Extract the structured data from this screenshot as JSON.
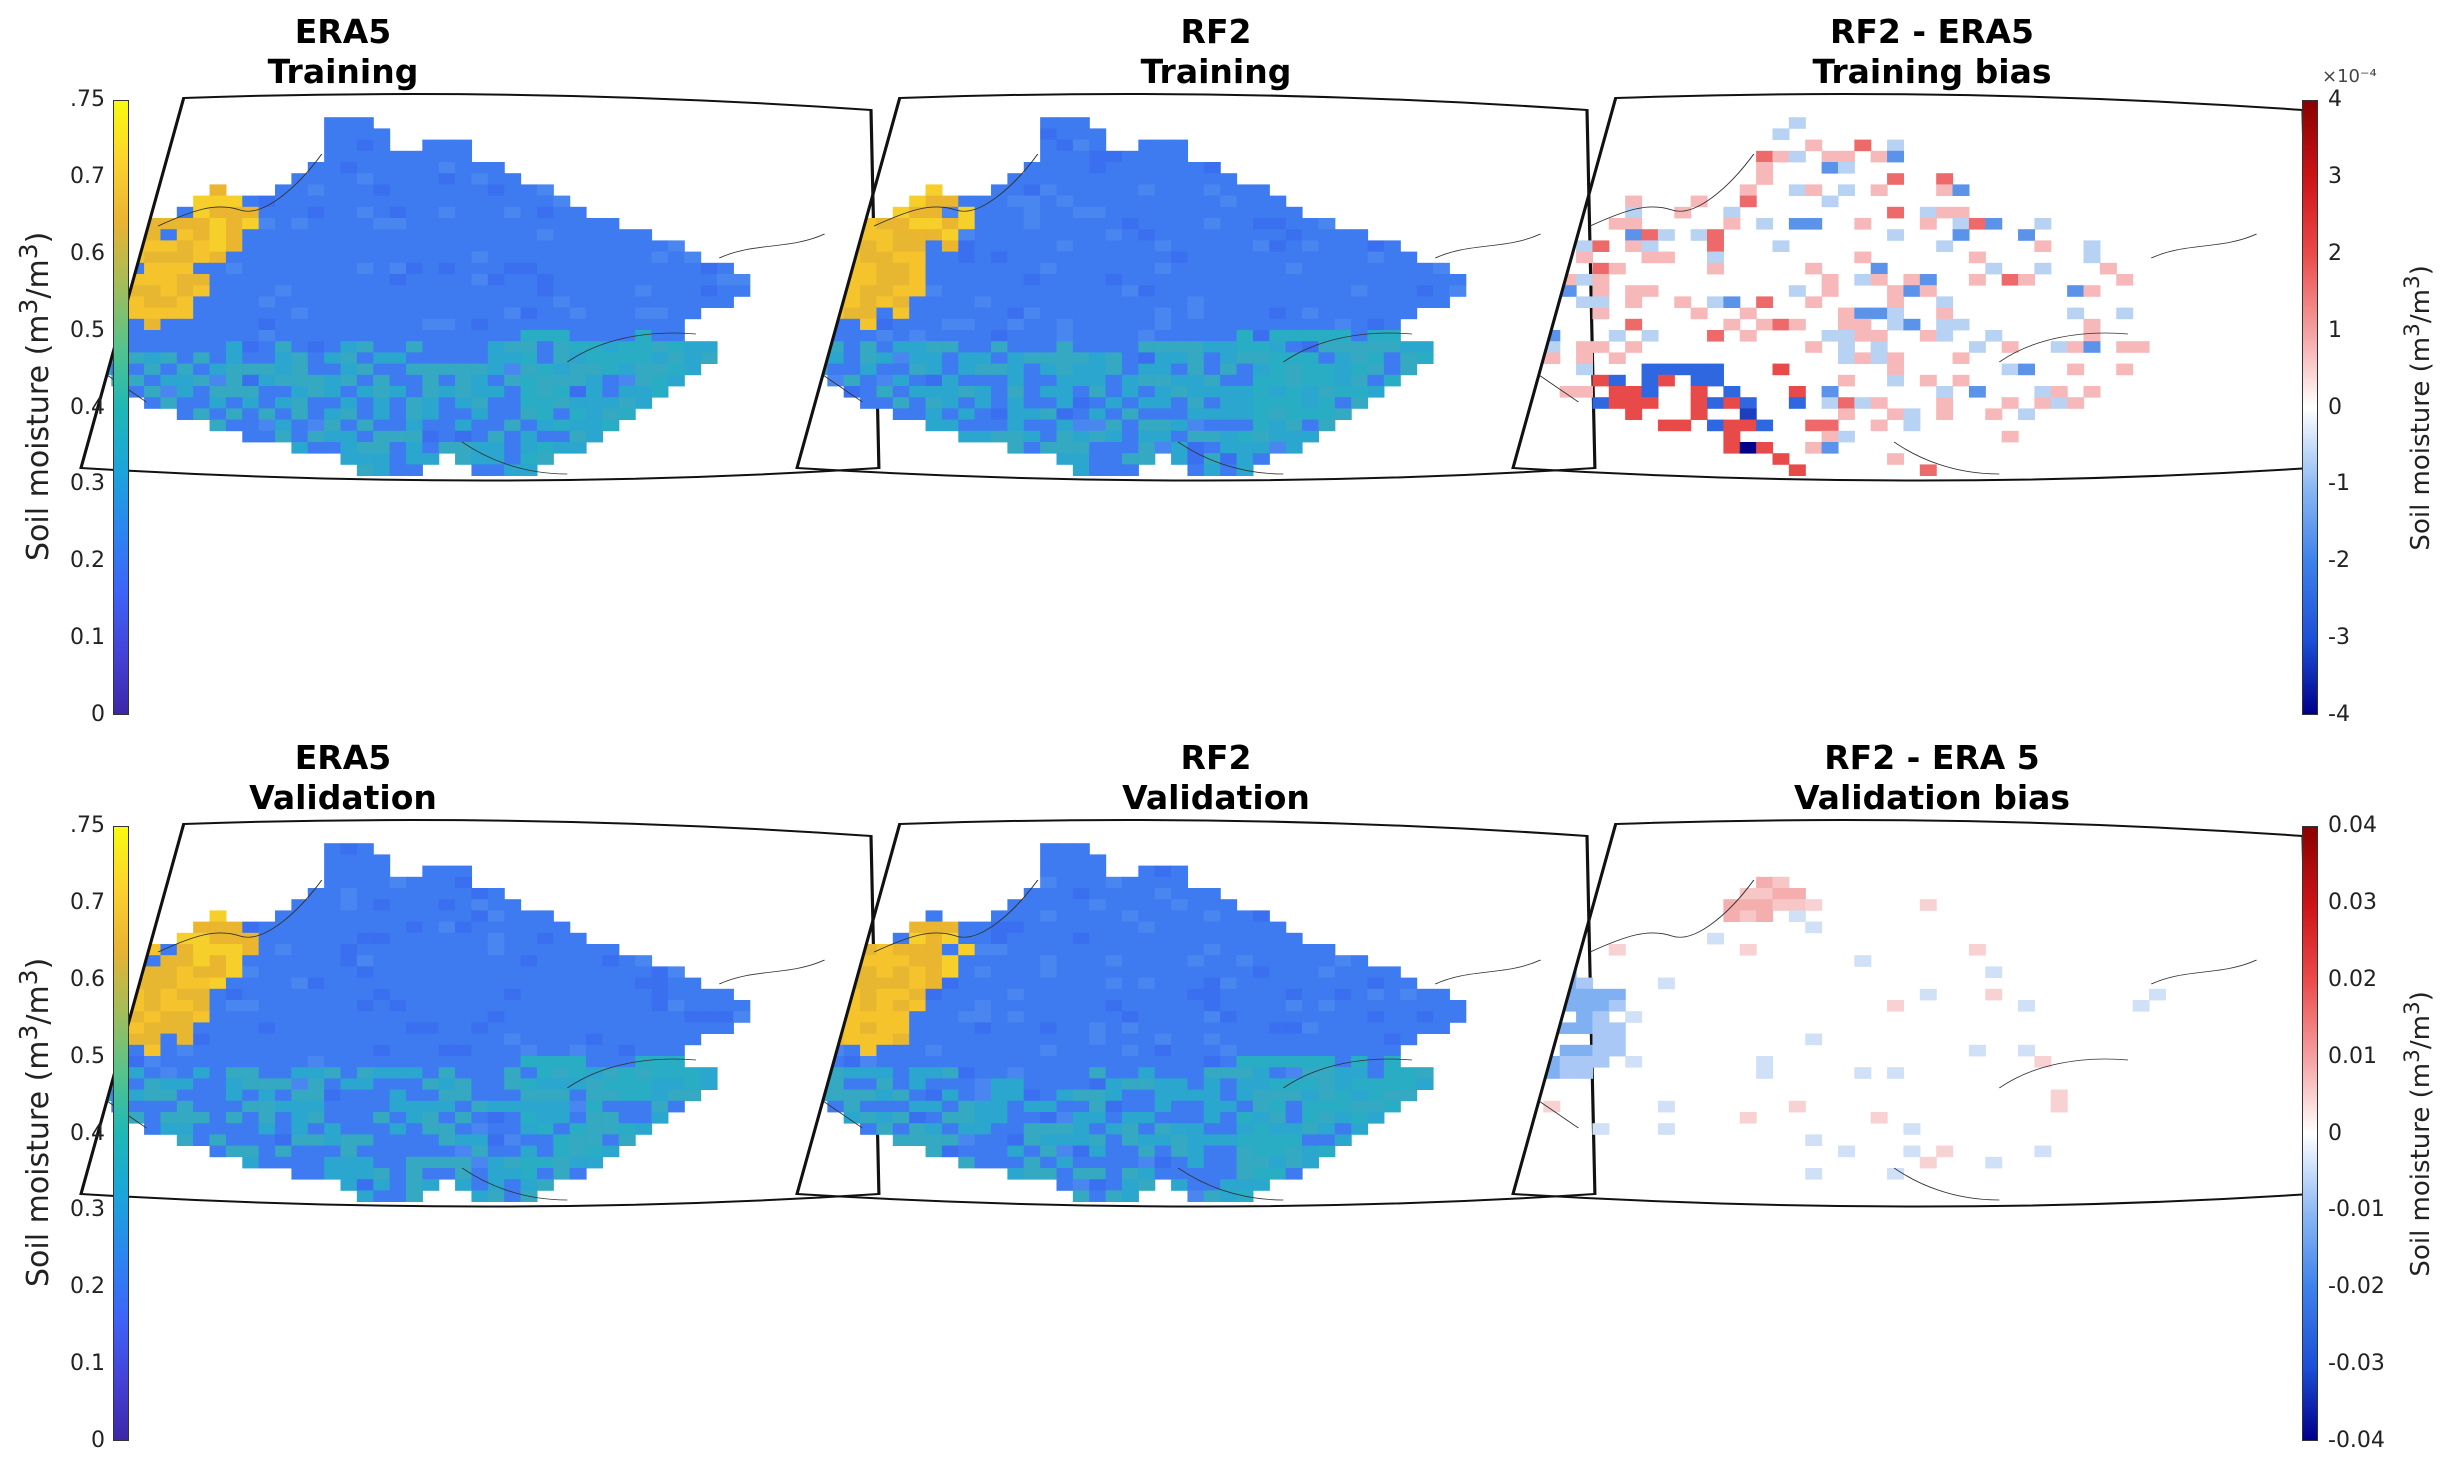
{
  "figure": {
    "panels": [
      {
        "id": "era5-training",
        "title_line1": "ERA5",
        "title_line2": "Training",
        "kind": "sm"
      },
      {
        "id": "rf2-training",
        "title_line1": "RF2",
        "title_line2": "Training",
        "kind": "sm"
      },
      {
        "id": "bias-training",
        "title_line1": "RF2 - ERA5",
        "title_line2": "Training bias",
        "kind": "bias-training"
      },
      {
        "id": "era5-validation",
        "title_line1": "ERA5",
        "title_line2": "Validation",
        "kind": "sm"
      },
      {
        "id": "rf2-validation",
        "title_line1": "RF2",
        "title_line2": "Validation",
        "kind": "sm"
      },
      {
        "id": "bias-validation",
        "title_line1": "RF2 - ERA 5",
        "title_line2": "Validation bias",
        "kind": "bias-validation"
      }
    ],
    "colorbars": {
      "soil_moisture": {
        "label_prefix": "Soil moisture (m",
        "label_sup1": "3",
        "label_mid": "/m",
        "label_sup2": "3",
        "label_suffix": ")",
        "ticks": [
          ".75",
          "0.7",
          "0.6",
          "0.5",
          "0.4",
          "0.3",
          "0.2",
          "0.1",
          "0"
        ],
        "range": [
          0,
          0.75
        ],
        "colors": [
          "#3d26a8",
          "#4443d7",
          "#3e64f9",
          "#2b86f0",
          "#1ba5da",
          "#1eb8b5",
          "#56c38b",
          "#a3bd5a",
          "#e8b332",
          "#fcd22f",
          "#f9fb0e"
        ]
      },
      "training_bias": {
        "label_prefix": "Soil moisture (m",
        "label_sup1": "3",
        "label_mid": "/m",
        "label_sup2": "3",
        "label_suffix": ")",
        "exponent": "×10⁻⁴",
        "ticks": [
          "4",
          "3",
          "2",
          "1",
          "0",
          "-1",
          "-2",
          "-3",
          "-4"
        ],
        "range": [
          -4,
          4
        ]
      },
      "validation_bias": {
        "label_prefix": "Soil moisture (m",
        "label_sup1": "3",
        "label_mid": "/m",
        "label_sup2": "3",
        "label_suffix": ")",
        "ticks": [
          "0.04",
          "0.03",
          "0.02",
          "0.01",
          "0",
          "-0.01",
          "-0.02",
          "-0.03",
          "-0.04"
        ],
        "range": [
          -0.04,
          0.04
        ]
      }
    },
    "colors": {
      "bias_positive_strong": "#8b0000",
      "bias_positive": "#e8212b",
      "bias_negative": "#2570e0",
      "bias_negative_strong": "#00008b",
      "soil_dominant": "#3e7bf0",
      "soil_wet": "#f5c42c",
      "coastline": "#222222"
    }
  }
}
